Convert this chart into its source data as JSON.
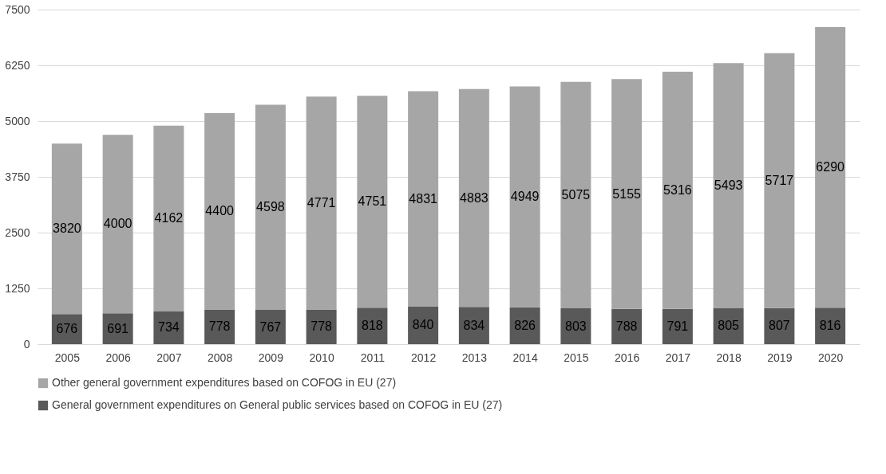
{
  "chart_data": {
    "type": "bar",
    "stacked": true,
    "categories": [
      "2005",
      "2006",
      "2007",
      "2008",
      "2009",
      "2010",
      "2011",
      "2012",
      "2013",
      "2014",
      "2015",
      "2016",
      "2017",
      "2018",
      "2019",
      "2020"
    ],
    "series": [
      {
        "name": "General government expenditures on General public services based on COFOG in EU (27)",
        "color": "#595959",
        "values": [
          676,
          691,
          734,
          778,
          767,
          778,
          818,
          840,
          834,
          826,
          803,
          788,
          791,
          805,
          807,
          816
        ]
      },
      {
        "name": "Other general government expenditures based on COFOG in EU (27)",
        "color": "#a6a6a6",
        "values": [
          3820,
          4000,
          4162,
          4400,
          4598,
          4771,
          4751,
          4831,
          4883,
          4949,
          5075,
          5155,
          5316,
          5493,
          5717,
          6290
        ]
      }
    ],
    "ylim": [
      0,
      7500
    ],
    "yticks": [
      0,
      1250,
      2500,
      3750,
      5000,
      6250,
      7500
    ],
    "grid": "y",
    "legend": "bottom",
    "data_labels": true
  }
}
